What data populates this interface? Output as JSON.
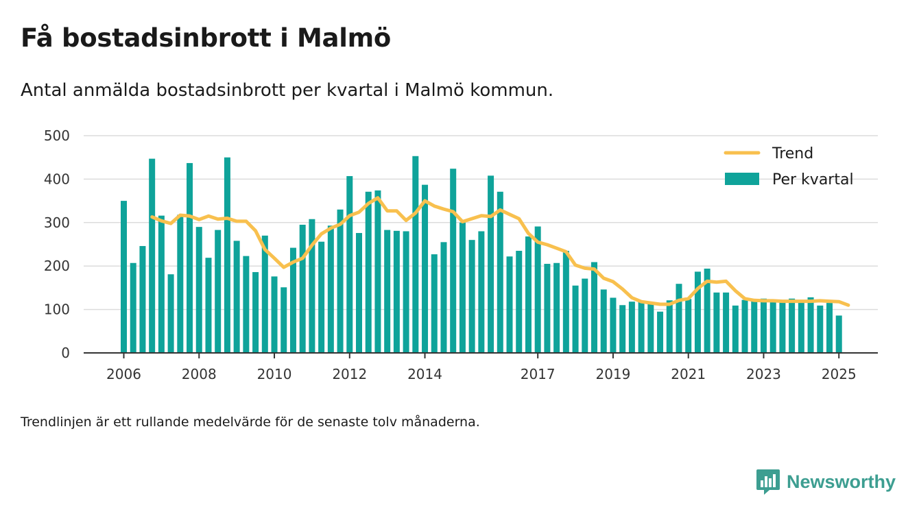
{
  "title": "Få bostadsinbrott i Malmö",
  "subtitle": "Antal anmälda bostadsinbrott per kvartal i Malmö kommun.",
  "footnote": "Trendlinjen är ett rullande medelvärde för de senaste tolv månaderna.",
  "brand": {
    "name": "Newsworthy",
    "icon": "newsworthy-logo-icon"
  },
  "colors": {
    "bars": "#0fa39a",
    "trend": "#f8c04e",
    "grid": "#dcdcdc",
    "axis": "#333333"
  },
  "chart_data": {
    "type": "bar",
    "ylim": [
      0,
      500
    ],
    "yticks": [
      0,
      100,
      200,
      300,
      400,
      500
    ],
    "xticks": [
      "2006",
      "2008",
      "2010",
      "2012",
      "2014",
      "2017",
      "2019",
      "2021",
      "2023",
      "2025"
    ],
    "grid": true,
    "legend_position": "top-right",
    "series": [
      {
        "name": "Per kvartal",
        "type": "bar",
        "start": "2006 Q1",
        "values": [
          350,
          207,
          246,
          447,
          316,
          181,
          318,
          437,
          290,
          219,
          283,
          450,
          258,
          223,
          186,
          270,
          176,
          151,
          242,
          295,
          308,
          256,
          293,
          330,
          407,
          276,
          371,
          374,
          283,
          281,
          280,
          453,
          387,
          227,
          255,
          424,
          300,
          260,
          280,
          408,
          371,
          222,
          235,
          268,
          291,
          205,
          207,
          235,
          155,
          171,
          209,
          146,
          127,
          110,
          118,
          117,
          114,
          95,
          121,
          159,
          124,
          187,
          194,
          139,
          139,
          109,
          122,
          120,
          125,
          118,
          117,
          125,
          117,
          128,
          109,
          115,
          86
        ]
      },
      {
        "name": "Trend",
        "type": "line",
        "start": "2006 Q4",
        "values": [
          313,
          304,
          298,
          317,
          315,
          307,
          315,
          308,
          310,
          303,
          303,
          281,
          238,
          218,
          197,
          209,
          218,
          248,
          274,
          287,
          296,
          316,
          324,
          344,
          357,
          327,
          327,
          305,
          322,
          350,
          338,
          331,
          325,
          302,
          309,
          316,
          314,
          329,
          319,
          309,
          275,
          255,
          249,
          241,
          233,
          202,
          195,
          193,
          172,
          164,
          147,
          127,
          118,
          115,
          112,
          112,
          121,
          125,
          148,
          165,
          163,
          165,
          143,
          125,
          121,
          120,
          120,
          119,
          119,
          119,
          119,
          120,
          119,
          118,
          110
        ]
      }
    ]
  }
}
